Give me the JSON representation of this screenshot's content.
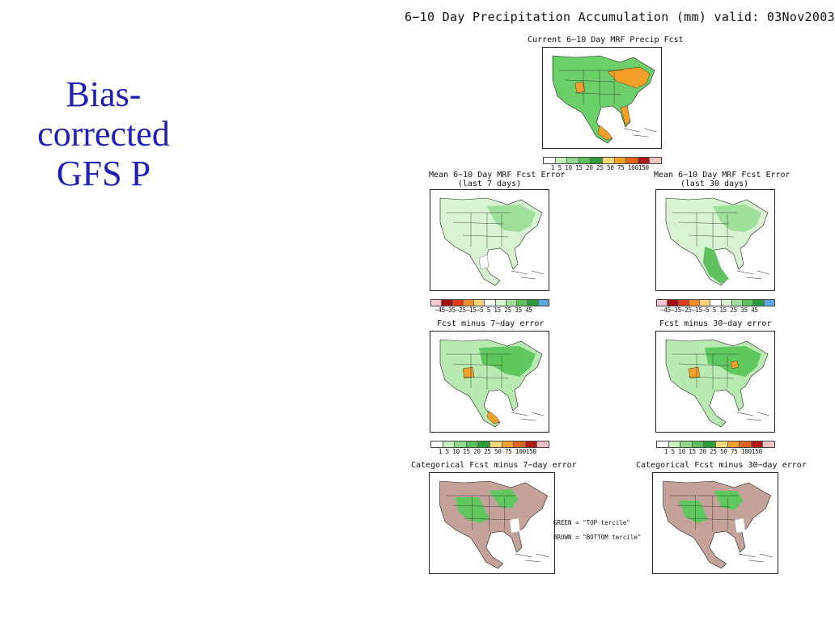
{
  "slide": {
    "title_lines": [
      "Bias-",
      "corrected",
      "GFS P"
    ],
    "title_color": "#1f1fb8"
  },
  "figure": {
    "title": "6−10 Day Precipitation Accumulation (mm) valid: 03Nov2003",
    "panels": {
      "current": {
        "title": "Current 6−10 Day MRF Precip Fcst"
      },
      "err7": {
        "title": [
          "Mean 6−10 Day MRF Fcst Error",
          "(last 7 days)"
        ]
      },
      "err30": {
        "title": [
          "Mean 6−10 Day MRF Fcst Error",
          "(last 30 days)"
        ]
      },
      "fcst7": {
        "title": "Fcst minus 7−day error"
      },
      "fcst30": {
        "title": "Fcst minus 30−day error"
      },
      "cat7": {
        "title": "Categorical Fcst minus 7−day error"
      },
      "cat30": {
        "title": "Categorical Fcst minus 30−day error"
      }
    },
    "scales": {
      "precip": {
        "ticks": "1  5  10 15 20 25 50 75 100150",
        "colors": [
          "#ffffff",
          "#c6efc0",
          "#8fd98a",
          "#5cc15a",
          "#2e9e3a",
          "#f5d77a",
          "#f2a02a",
          "#e2641d",
          "#b01818",
          "#f2c2c2"
        ]
      },
      "error": {
        "ticks": "−45−35−25−15−5  5  15 25 35 45",
        "colors": [
          "#f7c6cf",
          "#a01010",
          "#dd3b1b",
          "#f28e2b",
          "#fbd37a",
          "#ffffff",
          "#d7f3d2",
          "#9ee09a",
          "#5fc25e",
          "#2a9a3a",
          "#5aa7e6"
        ]
      }
    },
    "legend": {
      "green": "GREEN = \"TOP tercile\"",
      "brown": "BROWN = \"BOTTOM tercile\""
    },
    "colors": {
      "green": "#5fc95f",
      "light_green": "#b9eab2",
      "brown": "#c4a29a",
      "orange": "#f2a02a",
      "outline": "#222222"
    }
  }
}
